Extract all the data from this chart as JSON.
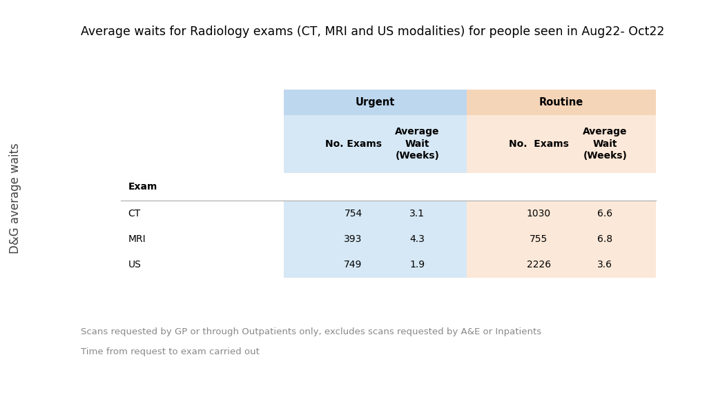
{
  "title": "Average waits for Radiology exams (CT, MRI and US modalities) for people seen in Aug22- Oct22",
  "side_label": "D&G average waits",
  "footnote_line1": "Scans requested by GP or through Outpatients only, excludes scans requested by A&E or Inpatients",
  "footnote_line2": "Time from request to exam carried out",
  "col_header_urgent": "Urgent",
  "col_header_routine": "Routine",
  "row_header": "Exam",
  "rows": [
    {
      "exam": "CT",
      "urgent_no": "754",
      "urgent_avg": "3.1",
      "routine_no": "1030",
      "routine_avg": "6.6"
    },
    {
      "exam": "MRI",
      "urgent_no": "393",
      "urgent_avg": "4.3",
      "routine_no": "755",
      "routine_avg": "6.8"
    },
    {
      "exam": "US",
      "urgent_no": "749",
      "urgent_avg": "1.9",
      "routine_no": "2226",
      "routine_avg": "3.6"
    }
  ],
  "urgent_bg": "#d6e8f5",
  "routine_bg": "#fce8d8",
  "header_urgent_bg": "#bdd7ee",
  "header_routine_bg": "#f5d5b8",
  "side_bar_color": "#eeeee4",
  "main_bg": "#ffffff",
  "title_fontsize": 12.5,
  "side_label_fontsize": 12,
  "table_fontsize": 10,
  "footnote_fontsize": 9.5
}
